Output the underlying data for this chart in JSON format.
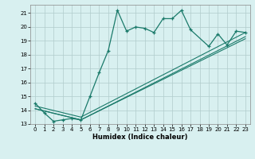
{
  "xlabel": "Humidex (Indice chaleur)",
  "bg_color": "#d8f0f0",
  "grid_color": "#b0cccc",
  "line_color": "#1a7a6a",
  "xlim": [
    -0.5,
    23.5
  ],
  "ylim": [
    13,
    21.6
  ],
  "yticks": [
    13,
    14,
    15,
    16,
    17,
    18,
    19,
    20,
    21
  ],
  "xticks": [
    0,
    1,
    2,
    3,
    4,
    5,
    6,
    7,
    8,
    9,
    10,
    11,
    12,
    13,
    14,
    15,
    16,
    17,
    18,
    19,
    20,
    21,
    22,
    23
  ],
  "series1_x": [
    0,
    1,
    2,
    3,
    4,
    5,
    6,
    7,
    8,
    9,
    10,
    11,
    12,
    13,
    14,
    15,
    16,
    17,
    19,
    20,
    21,
    22,
    23
  ],
  "series1_y": [
    14.5,
    13.8,
    13.2,
    13.3,
    13.4,
    13.3,
    15.0,
    16.7,
    18.3,
    21.2,
    19.7,
    20.0,
    19.9,
    19.6,
    20.6,
    20.6,
    21.2,
    19.8,
    18.6,
    19.5,
    18.7,
    19.7,
    19.6
  ],
  "series2_x": [
    0,
    5,
    23
  ],
  "series2_y": [
    14.1,
    13.3,
    19.3
  ],
  "series3_x": [
    0,
    5,
    23
  ],
  "series3_y": [
    14.3,
    13.5,
    19.6
  ],
  "series4_x": [
    0,
    5,
    23
  ],
  "series4_y": [
    14.1,
    13.3,
    19.15
  ]
}
